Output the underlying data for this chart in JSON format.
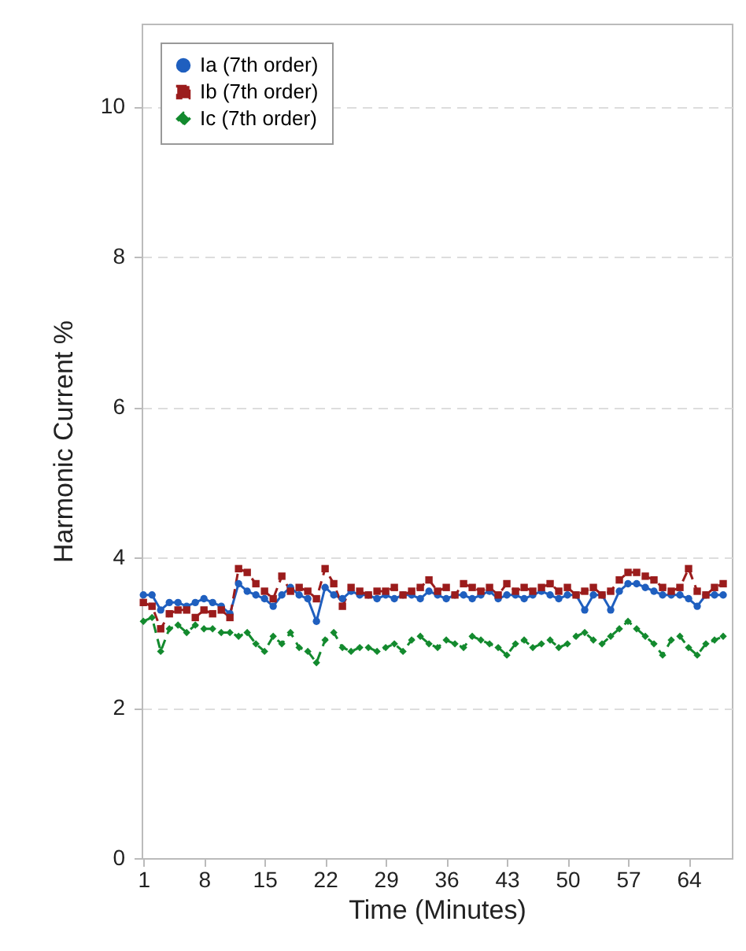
{
  "chart_data": {
    "type": "line",
    "xlabel": "Time (Minutes)",
    "ylabel": "Harmonic Current %",
    "x": [
      1,
      2,
      3,
      4,
      5,
      6,
      7,
      8,
      9,
      10,
      11,
      12,
      13,
      14,
      15,
      16,
      17,
      18,
      19,
      20,
      21,
      22,
      23,
      24,
      25,
      26,
      27,
      28,
      29,
      30,
      31,
      32,
      33,
      34,
      35,
      36,
      37,
      38,
      39,
      40,
      41,
      42,
      43,
      44,
      45,
      46,
      47,
      48,
      49,
      50,
      51,
      52,
      53,
      54,
      55,
      56,
      57,
      58,
      59,
      60,
      61,
      62,
      63,
      64,
      65,
      66,
      67,
      68
    ],
    "xlim": [
      0.8,
      69
    ],
    "xticks": [
      1,
      8,
      15,
      22,
      29,
      36,
      43,
      50,
      57,
      64
    ],
    "ylim": [
      0,
      11.1
    ],
    "yticks": [
      0,
      2,
      4,
      6,
      8,
      10
    ],
    "grid": "y",
    "legend": "top left",
    "series": [
      {
        "name": "Ia (7th order)",
        "color": "#1f5fbf",
        "marker": "circle",
        "line_style": "solid",
        "values": [
          3.5,
          3.5,
          3.3,
          3.4,
          3.4,
          3.35,
          3.4,
          3.45,
          3.4,
          3.35,
          3.25,
          3.65,
          3.55,
          3.5,
          3.45,
          3.35,
          3.5,
          3.6,
          3.5,
          3.45,
          3.15,
          3.6,
          3.5,
          3.45,
          3.55,
          3.5,
          3.5,
          3.45,
          3.5,
          3.45,
          3.5,
          3.5,
          3.45,
          3.55,
          3.5,
          3.45,
          3.5,
          3.5,
          3.45,
          3.5,
          3.55,
          3.45,
          3.5,
          3.5,
          3.45,
          3.5,
          3.55,
          3.5,
          3.45,
          3.5,
          3.5,
          3.3,
          3.5,
          3.5,
          3.3,
          3.55,
          3.65,
          3.65,
          3.6,
          3.55,
          3.5,
          3.5,
          3.5,
          3.45,
          3.35,
          3.5,
          3.5,
          3.5
        ]
      },
      {
        "name": "Ib (7th order)",
        "color": "#9b1c1c",
        "marker": "square",
        "line_style": "dashed",
        "values": [
          3.4,
          3.35,
          3.05,
          3.25,
          3.3,
          3.3,
          3.2,
          3.3,
          3.25,
          3.3,
          3.2,
          3.85,
          3.8,
          3.65,
          3.55,
          3.45,
          3.75,
          3.55,
          3.6,
          3.55,
          3.45,
          3.85,
          3.65,
          3.35,
          3.6,
          3.55,
          3.5,
          3.55,
          3.55,
          3.6,
          3.5,
          3.55,
          3.6,
          3.7,
          3.55,
          3.6,
          3.5,
          3.65,
          3.6,
          3.55,
          3.6,
          3.5,
          3.65,
          3.55,
          3.6,
          3.55,
          3.6,
          3.65,
          3.55,
          3.6,
          3.5,
          3.55,
          3.6,
          3.5,
          3.55,
          3.7,
          3.8,
          3.8,
          3.75,
          3.7,
          3.6,
          3.55,
          3.6,
          3.85,
          3.55,
          3.5,
          3.6,
          3.65
        ]
      },
      {
        "name": "Ic (7th order)",
        "color": "#138a2e",
        "marker": "diamond",
        "line_style": "dashed",
        "values": [
          3.15,
          3.2,
          2.75,
          3.05,
          3.1,
          3.0,
          3.1,
          3.05,
          3.05,
          3.0,
          3.0,
          2.95,
          3.0,
          2.85,
          2.75,
          2.95,
          2.85,
          3.0,
          2.8,
          2.75,
          2.6,
          2.9,
          3.0,
          2.8,
          2.75,
          2.8,
          2.8,
          2.75,
          2.8,
          2.85,
          2.75,
          2.9,
          2.95,
          2.85,
          2.8,
          2.9,
          2.85,
          2.8,
          2.95,
          2.9,
          2.85,
          2.8,
          2.7,
          2.85,
          2.9,
          2.8,
          2.85,
          2.9,
          2.8,
          2.85,
          2.95,
          3.0,
          2.9,
          2.85,
          2.95,
          3.05,
          3.15,
          3.05,
          2.95,
          2.85,
          2.7,
          2.9,
          2.95,
          2.8,
          2.7,
          2.85,
          2.9,
          2.95
        ]
      }
    ]
  }
}
